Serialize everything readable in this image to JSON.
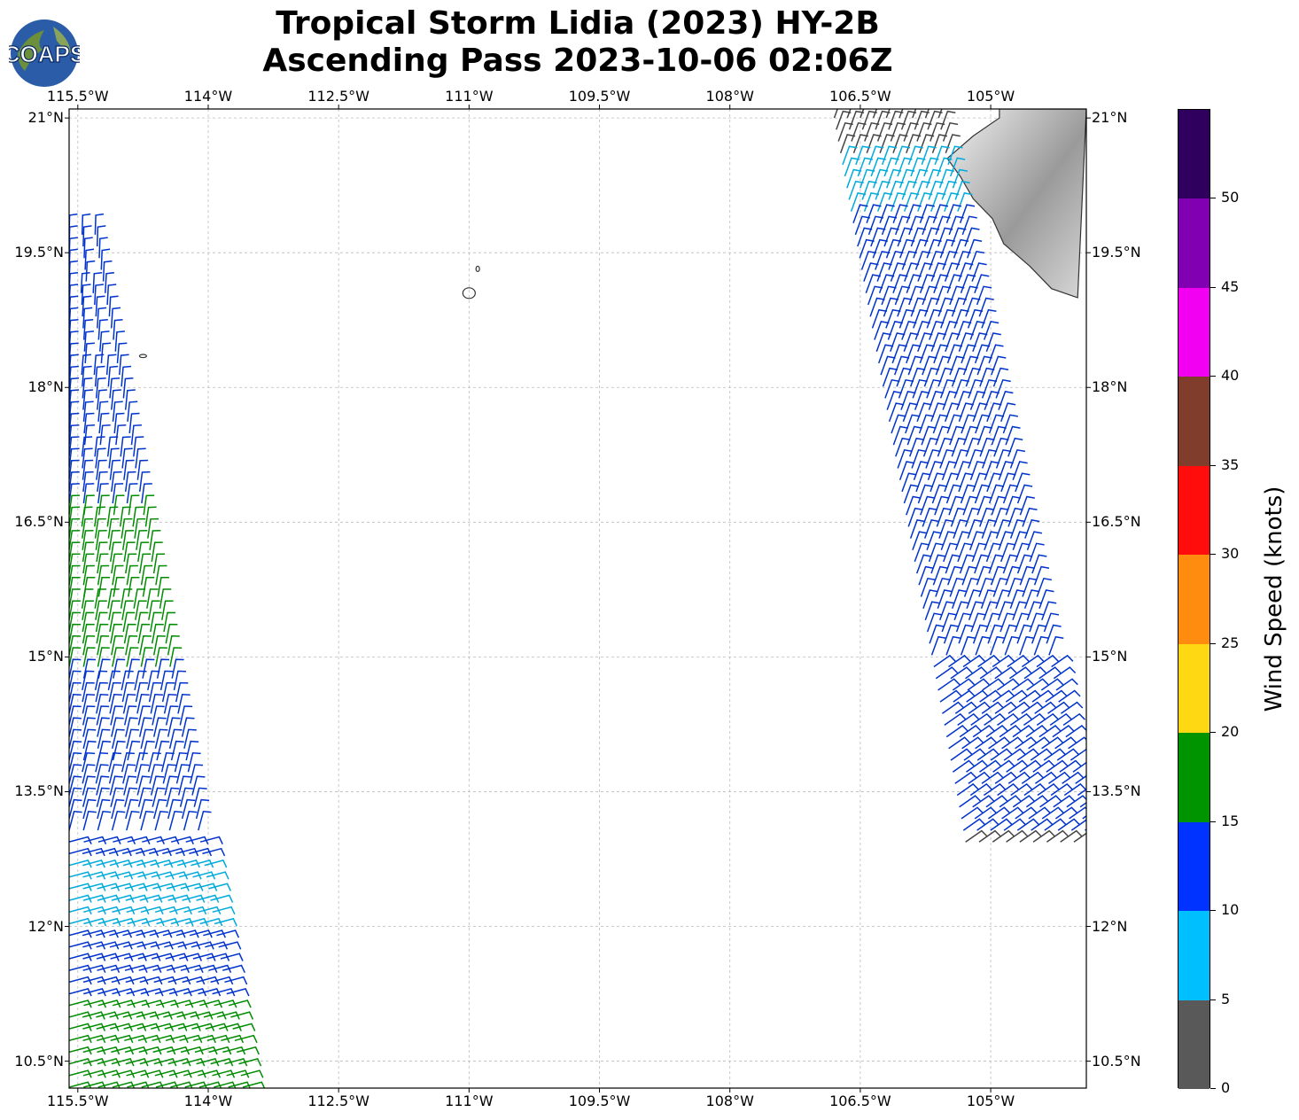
{
  "title": {
    "line1": "Tropical Storm Lidia (2023) HY-2B",
    "line2": "Ascending Pass 2023-10-06 02:06Z"
  },
  "logo": {
    "text": "COAPS"
  },
  "map": {
    "lon_range": [
      -115.6,
      -103.9
    ],
    "lat_range": [
      10.2,
      21.1
    ],
    "lon_ticks": [
      {
        "v": -115.5,
        "label": "115.5°W"
      },
      {
        "v": -114.0,
        "label": "114°W"
      },
      {
        "v": -112.5,
        "label": "112.5°W"
      },
      {
        "v": -111.0,
        "label": "111°W"
      },
      {
        "v": -109.5,
        "label": "109.5°W"
      },
      {
        "v": -108.0,
        "label": "108°W"
      },
      {
        "v": -106.5,
        "label": "106.5°W"
      },
      {
        "v": -105.0,
        "label": "105°W"
      }
    ],
    "lat_ticks": [
      {
        "v": 21.0,
        "label": "21°N"
      },
      {
        "v": 19.5,
        "label": "19.5°N"
      },
      {
        "v": 18.0,
        "label": "18°N"
      },
      {
        "v": 16.5,
        "label": "16.5°N"
      },
      {
        "v": 15.0,
        "label": "15°N"
      },
      {
        "v": 13.5,
        "label": "13.5°N"
      },
      {
        "v": 12.0,
        "label": "12°N"
      },
      {
        "v": 10.5,
        "label": "10.5°N"
      }
    ],
    "gridlines": true,
    "coast_fill": "#9a9a9a",
    "coast_stroke": "#333333",
    "swaths": [
      {
        "name": "west-swath",
        "lat_top": 19.7,
        "lat_bottom": 10.2,
        "lon_west_top": -115.6,
        "lon_east_top": -115.3,
        "lon_west_bottom": -115.6,
        "lon_east_bottom": -113.6,
        "speed_bands": [
          {
            "lat_from": 19.7,
            "lat_to": 16.6,
            "color": "#0033cc"
          },
          {
            "lat_from": 16.6,
            "lat_to": 14.8,
            "color": "#008c00"
          },
          {
            "lat_from": 14.8,
            "lat_to": 12.8,
            "color": "#0033cc"
          },
          {
            "lat_from": 12.8,
            "lat_to": 12.0,
            "color": "#00aadd"
          },
          {
            "lat_from": 12.0,
            "lat_to": 11.2,
            "color": "#0033cc"
          },
          {
            "lat_from": 11.2,
            "lat_to": 10.2,
            "color": "#008c00"
          }
        ]
      },
      {
        "name": "east-swath",
        "lat_top": 21.0,
        "lat_bottom": 13.0,
        "lon_west_top": -106.8,
        "lon_east_top": -105.6,
        "lon_west_bottom": -105.3,
        "lon_east_bottom": -103.9,
        "speed_bands": [
          {
            "lat_from": 21.0,
            "lat_to": 20.5,
            "color": "#444444"
          },
          {
            "lat_from": 20.5,
            "lat_to": 19.9,
            "color": "#00aadd"
          },
          {
            "lat_from": 19.9,
            "lat_to": 13.0,
            "color": "#0033cc"
          }
        ]
      }
    ]
  },
  "colorbar": {
    "label": "Wind Speed (knots)",
    "range": [
      0,
      55
    ],
    "segments": [
      {
        "from": 0,
        "to": 5,
        "color": "#595959"
      },
      {
        "from": 5,
        "to": 10,
        "color": "#00bfff"
      },
      {
        "from": 10,
        "to": 15,
        "color": "#0033ff"
      },
      {
        "from": 15,
        "to": 20,
        "color": "#009400"
      },
      {
        "from": 20,
        "to": 25,
        "color": "#ffd814"
      },
      {
        "from": 25,
        "to": 30,
        "color": "#ff8c0f"
      },
      {
        "from": 30,
        "to": 35,
        "color": "#ff0d0d"
      },
      {
        "from": 35,
        "to": 40,
        "color": "#803d2b"
      },
      {
        "from": 40,
        "to": 45,
        "color": "#f200f2"
      },
      {
        "from": 45,
        "to": 50,
        "color": "#8000b2"
      },
      {
        "from": 50,
        "to": 55,
        "color": "#30005e"
      }
    ],
    "ticks": [
      "0",
      "5",
      "10",
      "15",
      "20",
      "25",
      "30",
      "35",
      "40",
      "45",
      "50"
    ]
  }
}
